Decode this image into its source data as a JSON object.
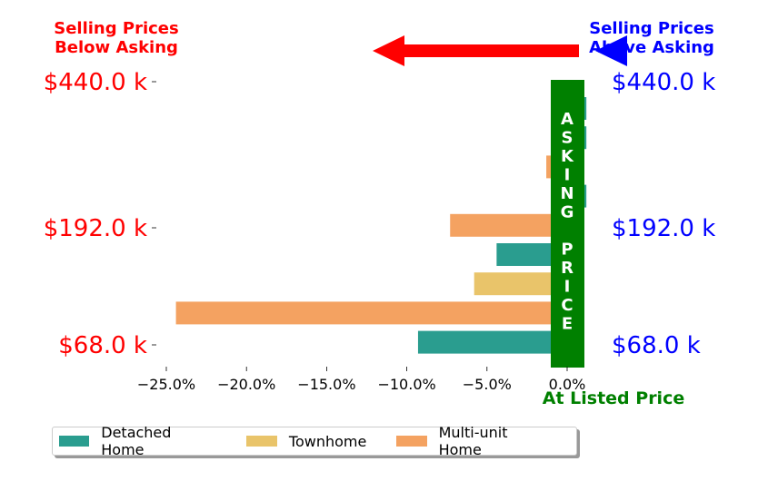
{
  "chart_data": {
    "type": "bar",
    "orientation": "horizontal",
    "header_left": [
      "Selling Prices",
      "Below Asking"
    ],
    "header_right": [
      "Selling Prices",
      "Above Asking"
    ],
    "asking_price_label": "ASKING PRICE",
    "at_listed_label": "At Listed Price",
    "x_ticks": [
      -25,
      -20,
      -15,
      -10,
      -5,
      0
    ],
    "x_tick_labels": [
      "−25.0%",
      "−20.0%",
      "−15.0%",
      "−10.0%",
      "−5.0%",
      "0.0%"
    ],
    "xlim": [
      -25.75,
      1.3
    ],
    "y_tick_labels": [
      "$440.0 k",
      "$192.0 k",
      "$68.0 k"
    ],
    "grid": false,
    "legend_placement": "below",
    "legend": [
      {
        "name": "Detached Home",
        "color": "#2a9d8f"
      },
      {
        "name": "Townhome",
        "color": "#e9c46a"
      },
      {
        "name": "Multi-unit Home",
        "color": "#f4a261"
      }
    ],
    "bars": [
      {
        "type": "Detached Home",
        "value": 1.2
      },
      {
        "type": "Detached Home",
        "value": 1.2
      },
      {
        "type": "Multi-unit Home",
        "value": -1.3
      },
      {
        "type": "Detached Home",
        "value": 1.2
      },
      {
        "type": "Multi-unit Home",
        "value": -7.3
      },
      {
        "type": "Detached Home",
        "value": -4.4
      },
      {
        "type": "Townhome",
        "value": -5.8
      },
      {
        "type": "Multi-unit Home",
        "value": -24.4
      },
      {
        "type": "Detached Home",
        "value": -9.3
      }
    ],
    "colors": {
      "below": "#ff0000",
      "above": "#0000ff",
      "asking": "#008000"
    }
  }
}
